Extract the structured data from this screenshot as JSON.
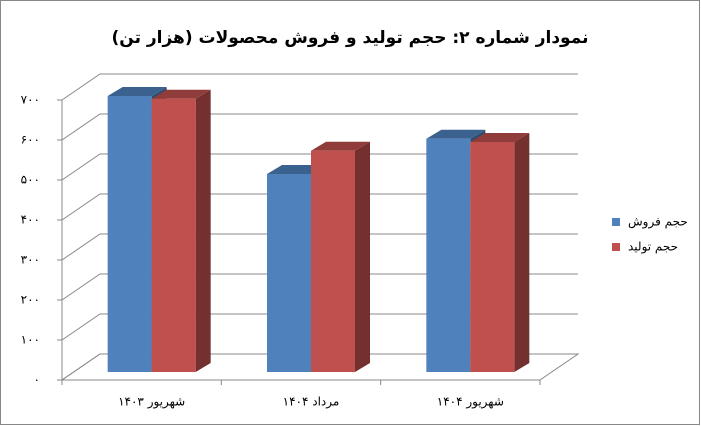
{
  "chart_data": {
    "type": "bar3d",
    "title": "نمودار شماره ۲: حجم تولید و فروش محصولات (هزار تن)",
    "categories": [
      "شهریور ۱۴۰۳",
      "مرداد ۱۴۰۴",
      "شهریور ۱۴۰۴"
    ],
    "series": [
      {
        "name": "حجم فروش",
        "color": "#4f81bd",
        "values": [
          690,
          495,
          583
        ]
      },
      {
        "name": "حجم تولید",
        "color": "#c0504d",
        "values": [
          683,
          553,
          575
        ]
      }
    ],
    "ylim": [
      0,
      700
    ],
    "yticks": [
      {
        "value": 0,
        "label": "۰"
      },
      {
        "value": 100,
        "label": "۱۰۰"
      },
      {
        "value": 200,
        "label": "۲۰۰"
      },
      {
        "value": 300,
        "label": "۳۰۰"
      },
      {
        "value": 400,
        "label": "۴۰۰"
      },
      {
        "value": 500,
        "label": "۵۰۰"
      },
      {
        "value": 600,
        "label": "۶۰۰"
      },
      {
        "value": 700,
        "label": "۷۰۰"
      }
    ],
    "grid": true,
    "legend": "right"
  }
}
